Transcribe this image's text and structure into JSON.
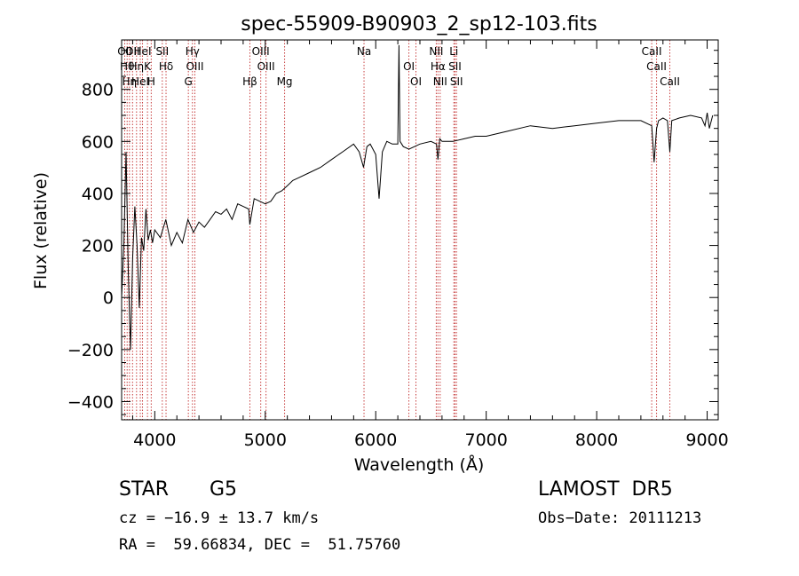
{
  "chart_data": {
    "type": "line",
    "title": "spec-55909-B90903_2_sp12-103.fits",
    "xlabel": "Wavelength (Å)",
    "ylabel": "Flux (relative)",
    "xlim": [
      3700,
      9100
    ],
    "ylim": [
      -470,
      990
    ],
    "xticks": [
      4000,
      5000,
      6000,
      7000,
      8000,
      9000
    ],
    "yticks": [
      -400,
      -200,
      0,
      200,
      400,
      600,
      800
    ],
    "grid": false,
    "series": [
      {
        "x": [
          3700,
          3720,
          3740,
          3760,
          3780,
          3800,
          3820,
          3840,
          3860,
          3880,
          3900,
          3920,
          3940,
          3960,
          3980,
          4000,
          4050,
          4100,
          4150,
          4200,
          4250,
          4300,
          4350,
          4400,
          4450,
          4500,
          4550,
          4600,
          4650,
          4700,
          4750,
          4800,
          4850,
          4860,
          4900,
          4950,
          5000,
          5050,
          5100,
          5150,
          5200,
          5250,
          5300,
          5400,
          5500,
          5600,
          5700,
          5800,
          5850,
          5890,
          5920,
          5950,
          6000,
          6030,
          6060,
          6100,
          6150,
          6200,
          6210,
          6220,
          6250,
          6300,
          6400,
          6500,
          6550,
          6563,
          6580,
          6600,
          6700,
          6800,
          6900,
          7000,
          7200,
          7400,
          7600,
          7800,
          8000,
          8200,
          8400,
          8498,
          8520,
          8542,
          8560,
          8600,
          8640,
          8662,
          8680,
          8750,
          8850,
          8950,
          8980,
          9000,
          9020,
          9050
        ],
        "y": [
          0,
          200,
          560,
          100,
          -200,
          150,
          350,
          200,
          -40,
          230,
          180,
          340,
          220,
          260,
          210,
          260,
          230,
          300,
          200,
          250,
          210,
          300,
          250,
          290,
          270,
          300,
          330,
          320,
          340,
          300,
          360,
          350,
          340,
          280,
          380,
          370,
          360,
          370,
          400,
          410,
          430,
          450,
          460,
          480,
          500,
          530,
          560,
          590,
          560,
          500,
          580,
          590,
          550,
          380,
          560,
          600,
          590,
          590,
          970,
          600,
          580,
          570,
          590,
          600,
          590,
          530,
          610,
          600,
          600,
          610,
          620,
          620,
          640,
          660,
          650,
          660,
          670,
          680,
          680,
          660,
          520,
          650,
          680,
          690,
          680,
          560,
          680,
          690,
          700,
          690,
          660,
          710,
          650,
          700
        ]
      }
    ],
    "lines": [
      {
        "x": 3728,
        "label": "OII"
      },
      {
        "x": 3750,
        "label": "Hθ"
      },
      {
        "x": 3771,
        "label": "Hη"
      },
      {
        "x": 3799,
        "label": "OII"
      },
      {
        "x": 3835,
        "label": "Hη"
      },
      {
        "x": 3869,
        "label": "HeI"
      },
      {
        "x": 3889,
        "label": "HeI"
      },
      {
        "x": 3934,
        "label": "K"
      },
      {
        "x": 3968,
        "label": "H"
      },
      {
        "x": 4068,
        "label": "SII"
      },
      {
        "x": 4102,
        "label": "Hδ"
      },
      {
        "x": 4304,
        "label": "G"
      },
      {
        "x": 4341,
        "label": "Hγ"
      },
      {
        "x": 4363,
        "label": "OIII"
      },
      {
        "x": 4861,
        "label": "Hβ"
      },
      {
        "x": 4959,
        "label": "OIII"
      },
      {
        "x": 5007,
        "label": "OIII"
      },
      {
        "x": 5175,
        "label": "Mg"
      },
      {
        "x": 5894,
        "label": "Na"
      },
      {
        "x": 6300,
        "label": "OI"
      },
      {
        "x": 6364,
        "label": "OI"
      },
      {
        "x": 6548,
        "label": "NII"
      },
      {
        "x": 6563,
        "label": "Hα"
      },
      {
        "x": 6583,
        "label": "NII"
      },
      {
        "x": 6707,
        "label": "Li"
      },
      {
        "x": 6717,
        "label": "SII"
      },
      {
        "x": 6731,
        "label": "SII"
      },
      {
        "x": 8498,
        "label": "CaII"
      },
      {
        "x": 8542,
        "label": "CaII"
      },
      {
        "x": 8662,
        "label": "CaII"
      }
    ]
  },
  "info": {
    "class": "STAR",
    "subclass": "G5",
    "survey": "LAMOST  DR5",
    "cz": "cz = −16.9 ± 13.7 km/s",
    "obs_date": "Obs−Date: 20111213",
    "coords": "RA =  59.66834, DEC =  51.75760"
  },
  "colors": {
    "line": "#000000",
    "marker": "#c84040"
  }
}
